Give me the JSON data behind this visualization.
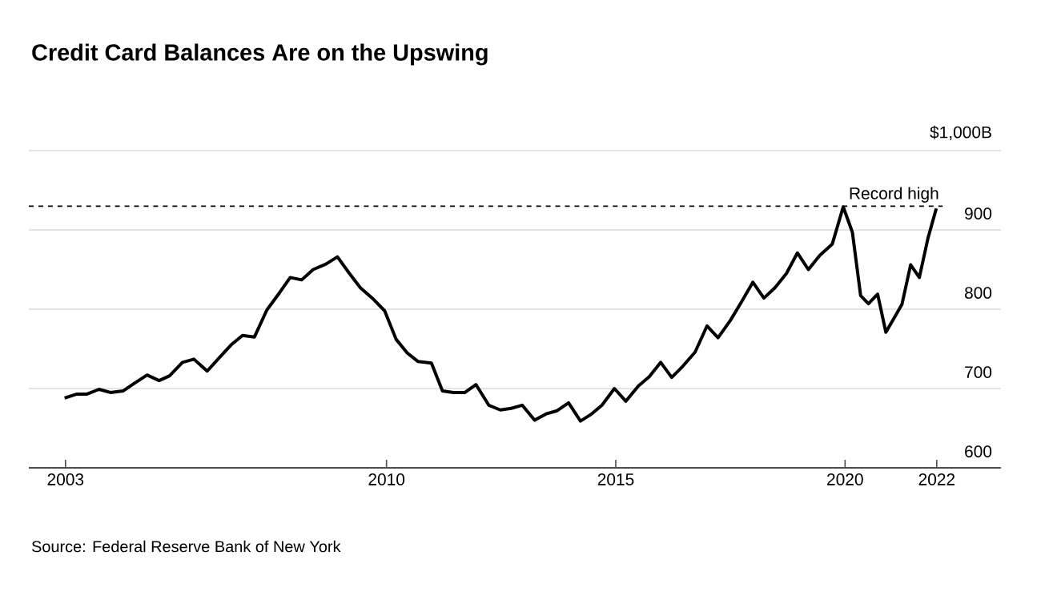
{
  "chart_data": {
    "type": "line",
    "title": "Credit Card Balances Are on the Upswing",
    "annotations": [
      "Source: Federal Reserve Bank of New York"
    ],
    "x": [
      2002.98,
      2003.25,
      2003.47,
      2003.73,
      2003.98,
      2004.26,
      2004.51,
      2004.78,
      2005.04,
      2005.27,
      2005.55,
      2005.8,
      2006.09,
      2006.34,
      2006.61,
      2006.86,
      2007.12,
      2007.39,
      2007.67,
      2007.9,
      2008.15,
      2008.4,
      2008.68,
      2008.93,
      2009.18,
      2009.43,
      2009.69,
      2009.96,
      2010.21,
      2010.45,
      2010.69,
      2010.98,
      2011.22,
      2011.46,
      2011.71,
      2011.95,
      2012.23,
      2012.48,
      2012.72,
      2012.96,
      2013.23,
      2013.48,
      2013.72,
      2013.97,
      2014.23,
      2014.45,
      2014.7,
      2014.97,
      2015.22,
      2015.49,
      2015.73,
      2015.98,
      2016.22,
      2016.46,
      2016.73,
      2016.99,
      2017.23,
      2017.5,
      2017.74,
      2017.99,
      2018.23,
      2018.47,
      2018.72,
      2018.96,
      2019.2,
      2019.45,
      2019.72,
      2019.96,
      2020.16,
      2020.34,
      2020.51,
      2020.71,
      2020.89,
      2021.07,
      2021.24,
      2021.43,
      2021.62,
      2021.81,
      2021.99
    ],
    "values": [
      688,
      693,
      693,
      699,
      695,
      697,
      707,
      717,
      710,
      716,
      733,
      737,
      722,
      738,
      755,
      767,
      765,
      799,
      821,
      840,
      837,
      850,
      857,
      866,
      846,
      827,
      814,
      798,
      762,
      745,
      734,
      732,
      697,
      695,
      695,
      705,
      679,
      673,
      675,
      679,
      660,
      668,
      672,
      682,
      659,
      667,
      679,
      700,
      684,
      703,
      715,
      733,
      714,
      728,
      746,
      779,
      764,
      786,
      809,
      834,
      814,
      827,
      845,
      871,
      850,
      868,
      882,
      929,
      897,
      817,
      807,
      819,
      771,
      789,
      806,
      856,
      840,
      890,
      927
    ],
    "color": "#000000",
    "line_style": "solid",
    "xlim": [
      2002.2,
      2023.4
    ],
    "xticks": [
      2003,
      2010,
      2015,
      2020,
      2022
    ],
    "ylim": [
      600,
      1000
    ],
    "yticks": [
      600,
      700,
      800,
      900,
      {
        "value": 1000,
        "label": "$1,000B"
      }
    ],
    "grid": "y",
    "ref_lines": [
      {
        "axis": "y",
        "value": 930,
        "label": "Record high",
        "line_style": "dashed",
        "color": "#000000"
      }
    ]
  }
}
